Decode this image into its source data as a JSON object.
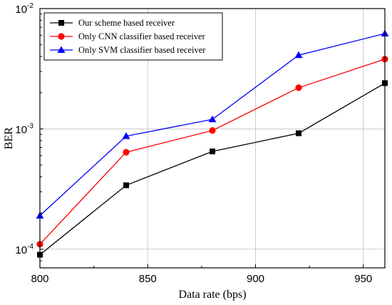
{
  "chart_data": {
    "type": "line",
    "xlabel": "Data rate (bps)",
    "ylabel": "BER",
    "xlim": [
      800,
      960
    ],
    "ylim": [
      7e-05,
      0.01
    ],
    "y_scale": "log",
    "x_ticks": [
      800,
      850,
      900,
      950
    ],
    "x_tick_labels": [
      "800",
      "850",
      "900",
      "950"
    ],
    "y_ticks": [
      {
        "value": 0.0001,
        "base": "10",
        "exp": "-4"
      },
      {
        "value": 0.001,
        "base": "10",
        "exp": "-3"
      },
      {
        "value": 0.01,
        "base": "10",
        "exp": "-2"
      }
    ],
    "grid": true,
    "legend_position": "top-left",
    "x": [
      800,
      840,
      880,
      920,
      960
    ],
    "series": [
      {
        "name": "Our scheme based receiver",
        "color": "#000000",
        "marker": "square",
        "values": [
          9e-05,
          0.00034,
          0.00065,
          0.00092,
          0.0024
        ]
      },
      {
        "name": "Only CNN classifier based receiver",
        "color": "#ff0000",
        "marker": "circle",
        "values": [
          0.00011,
          0.00064,
          0.00097,
          0.0022,
          0.0038
        ]
      },
      {
        "name": "Only SVM classifier based receiver",
        "color": "#0000ff",
        "marker": "triangle",
        "values": [
          0.00019,
          0.00087,
          0.0012,
          0.0041,
          0.0062
        ]
      }
    ]
  }
}
